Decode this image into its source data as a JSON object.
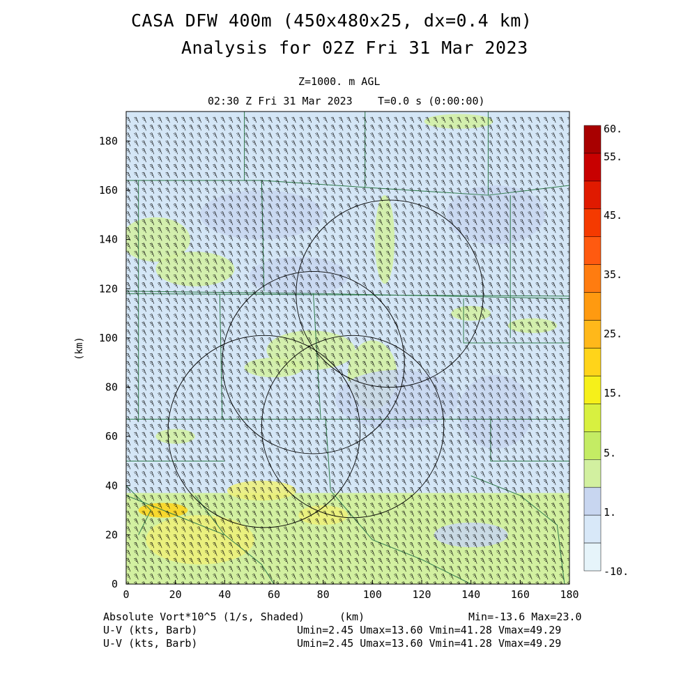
{
  "header": {
    "title_line1": "CASA DFW 400m (450x480x25, dx=0.4 km)",
    "title_line2": "Analysis for 02Z Fri 31 Mar 2023",
    "level": "Z=1000. m AGL",
    "valid_time": "02:30 Z Fri 31 Mar 2023",
    "forecast_time": "T=0.0 s (0:00:00)"
  },
  "chart_data": {
    "type": "heatmap",
    "xlabel": "(km)",
    "ylabel": "(km)",
    "xlim": [
      0,
      180
    ],
    "ylim": [
      0,
      192
    ],
    "x_ticks": [
      "0",
      "20",
      "40",
      "60",
      "80",
      "100",
      "120",
      "140",
      "160",
      "180"
    ],
    "y_ticks": [
      "0",
      "20",
      "40",
      "60",
      "80",
      "100",
      "120",
      "140",
      "160",
      "180"
    ],
    "colorbar": {
      "labels": [
        "60.",
        "55.",
        "45.",
        "35.",
        "25.",
        "15.",
        "5.",
        "1.",
        "-10."
      ],
      "colors": [
        "#a80000",
        "#c80000",
        "#e01a00",
        "#f53a00",
        "#ff5a10",
        "#ff7c10",
        "#ff9a10",
        "#ffb81a",
        "#ffd41a",
        "#f6f01a",
        "#d8f040",
        "#c4ec64",
        "#d2f0a0",
        "#c8d6f0",
        "#d8e8f8",
        "#e6f4fa"
      ],
      "colors_note_hex": true
    },
    "radar_rings": [
      {
        "center_km": [
          107,
          118
        ],
        "radius_km": 38
      },
      {
        "center_km": [
          76,
          90
        ],
        "radius_km": 37
      },
      {
        "center_km": [
          92,
          64
        ],
        "radius_km": 37
      },
      {
        "center_km": [
          56,
          62
        ],
        "radius_km": 39
      }
    ],
    "colors": {
      "background_field": "#d4e6f6",
      "positive_field": "#d2f0a0",
      "strong_positive": "#eef078",
      "county_lines": "#2e7a4a",
      "barbs": "#000000"
    }
  },
  "footer": {
    "field_label": "Absolute Vort*10^5 (1/s, Shaded)",
    "x_unit": "(km)",
    "min_max": "Min=-13.6 Max=23.0",
    "barb_label_1": "U-V (kts, Barb)",
    "barb_label_2": "U-V (kts, Barb)",
    "barb_stats_1": "Umin=2.45 Umax=13.60 Vmin=41.28 Vmax=49.29",
    "barb_stats_2": "Umin=2.45 Umax=13.60 Vmin=41.28 Vmax=49.29"
  }
}
